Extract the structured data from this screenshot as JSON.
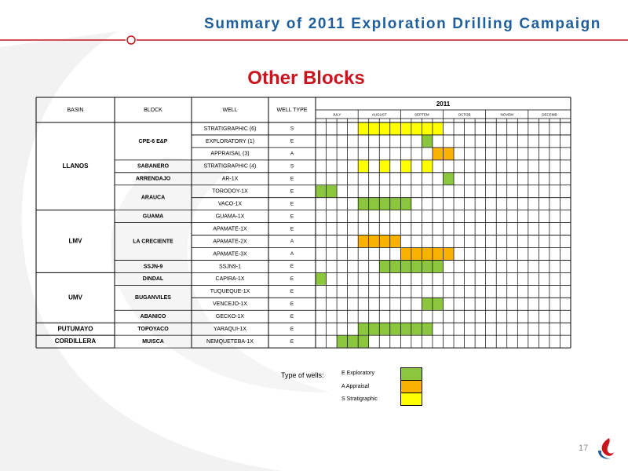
{
  "header": {
    "title": "Summary of 2011 Exploration  Drilling Campaign",
    "accent_color": "#c8151c",
    "title_color": "#1f5f9b"
  },
  "subtitle": "Other Blocks",
  "table": {
    "headers": {
      "basin": "BASIN",
      "block": "BLOCK",
      "well": "WELL",
      "well_type": "WELL TYPE"
    },
    "year": "2011",
    "months": [
      "JULY",
      "AUGUST",
      "SEPTEM",
      "OCTOB",
      "NOVEM",
      "DECEMB"
    ],
    "basins": [
      {
        "name": "LLANOS",
        "rows": 7
      },
      {
        "name": "LMV",
        "rows": 5
      },
      {
        "name": "UMV",
        "rows": 4
      },
      {
        "name": "PUTUMAYO",
        "rows": 1
      },
      {
        "name": "CORDILLERA",
        "rows": 1
      }
    ],
    "blocks": [
      {
        "name": "CPE-6 E&P",
        "rows": 3
      },
      {
        "name": "SABANERO",
        "rows": 1
      },
      {
        "name": "ARRENDAJO",
        "rows": 1
      },
      {
        "name": "ARAUCA",
        "rows": 2
      },
      {
        "name": "GUAMA",
        "rows": 1
      },
      {
        "name": "LA CRECIENTE",
        "rows": 3
      },
      {
        "name": "SSJN-9",
        "rows": 1
      },
      {
        "name": "DINDAL",
        "rows": 1
      },
      {
        "name": "BUGANVILES",
        "rows": 2
      },
      {
        "name": "ABANICO",
        "rows": 1
      },
      {
        "name": "TOPOYACO",
        "rows": 1
      },
      {
        "name": "MUISCA",
        "rows": 1
      }
    ],
    "wells": [
      {
        "well": "STRATIGRAPHIC (6)",
        "type": "S",
        "bars": [
          [
            4,
            12
          ]
        ]
      },
      {
        "well": "EXPLORATORY (1)",
        "type": "E",
        "bars": [
          [
            10,
            11
          ]
        ]
      },
      {
        "well": "APPRAISAL (3)",
        "type": "A",
        "bars": [
          [
            11,
            13
          ]
        ]
      },
      {
        "well": "STRATIGRAPHIC (4)",
        "type": "S",
        "bars": [
          [
            4,
            5
          ],
          [
            6,
            7
          ],
          [
            8,
            9
          ],
          [
            10,
            11
          ]
        ]
      },
      {
        "well": "AR-1X",
        "type": "E",
        "bars": [
          [
            12,
            13
          ]
        ]
      },
      {
        "well": "TORODOY-1X",
        "type": "E",
        "bars": [
          [
            0,
            2
          ]
        ]
      },
      {
        "well": "VACO-1X",
        "type": "E",
        "bars": [
          [
            4,
            9
          ]
        ]
      },
      {
        "well": "GUAMA-1X",
        "type": "E",
        "bars": []
      },
      {
        "well": "APAMATE-1X",
        "type": "E",
        "bars": []
      },
      {
        "well": "APAMATE-2X",
        "type": "A",
        "bars": [
          [
            4,
            8
          ]
        ]
      },
      {
        "well": "APAMATE-3X",
        "type": "A",
        "bars": [
          [
            8,
            13
          ]
        ]
      },
      {
        "well": "SSJN9-1",
        "type": "E",
        "bars": [
          [
            6,
            12
          ]
        ]
      },
      {
        "well": "CAPIRA-1X",
        "type": "E",
        "bars": [
          [
            0,
            1
          ]
        ]
      },
      {
        "well": "TUQUEQUE-1X",
        "type": "E",
        "bars": []
      },
      {
        "well": "VENCEJO-1X",
        "type": "E",
        "bars": [
          [
            10,
            12
          ]
        ]
      },
      {
        "well": "GECKO-1X",
        "type": "E",
        "bars": []
      },
      {
        "well": "YARAQUI-1X",
        "type": "E",
        "bars": [
          [
            4,
            11
          ]
        ]
      },
      {
        "well": "NEMQUETEBA-1X",
        "type": "E",
        "bars": [
          [
            2,
            5
          ]
        ]
      }
    ],
    "type_colors": {
      "E": "#8cc63f",
      "A": "#f9b200",
      "S": "#ffff00"
    }
  },
  "legend": {
    "label": "Type of wells:",
    "entries": [
      {
        "text": "E  Exploratory",
        "color": "#8cc63f"
      },
      {
        "text": "A  Appraisal",
        "color": "#f9b200"
      },
      {
        "text": "S  Stratigraphic",
        "color": "#ffff00"
      }
    ]
  },
  "page_number": "17"
}
